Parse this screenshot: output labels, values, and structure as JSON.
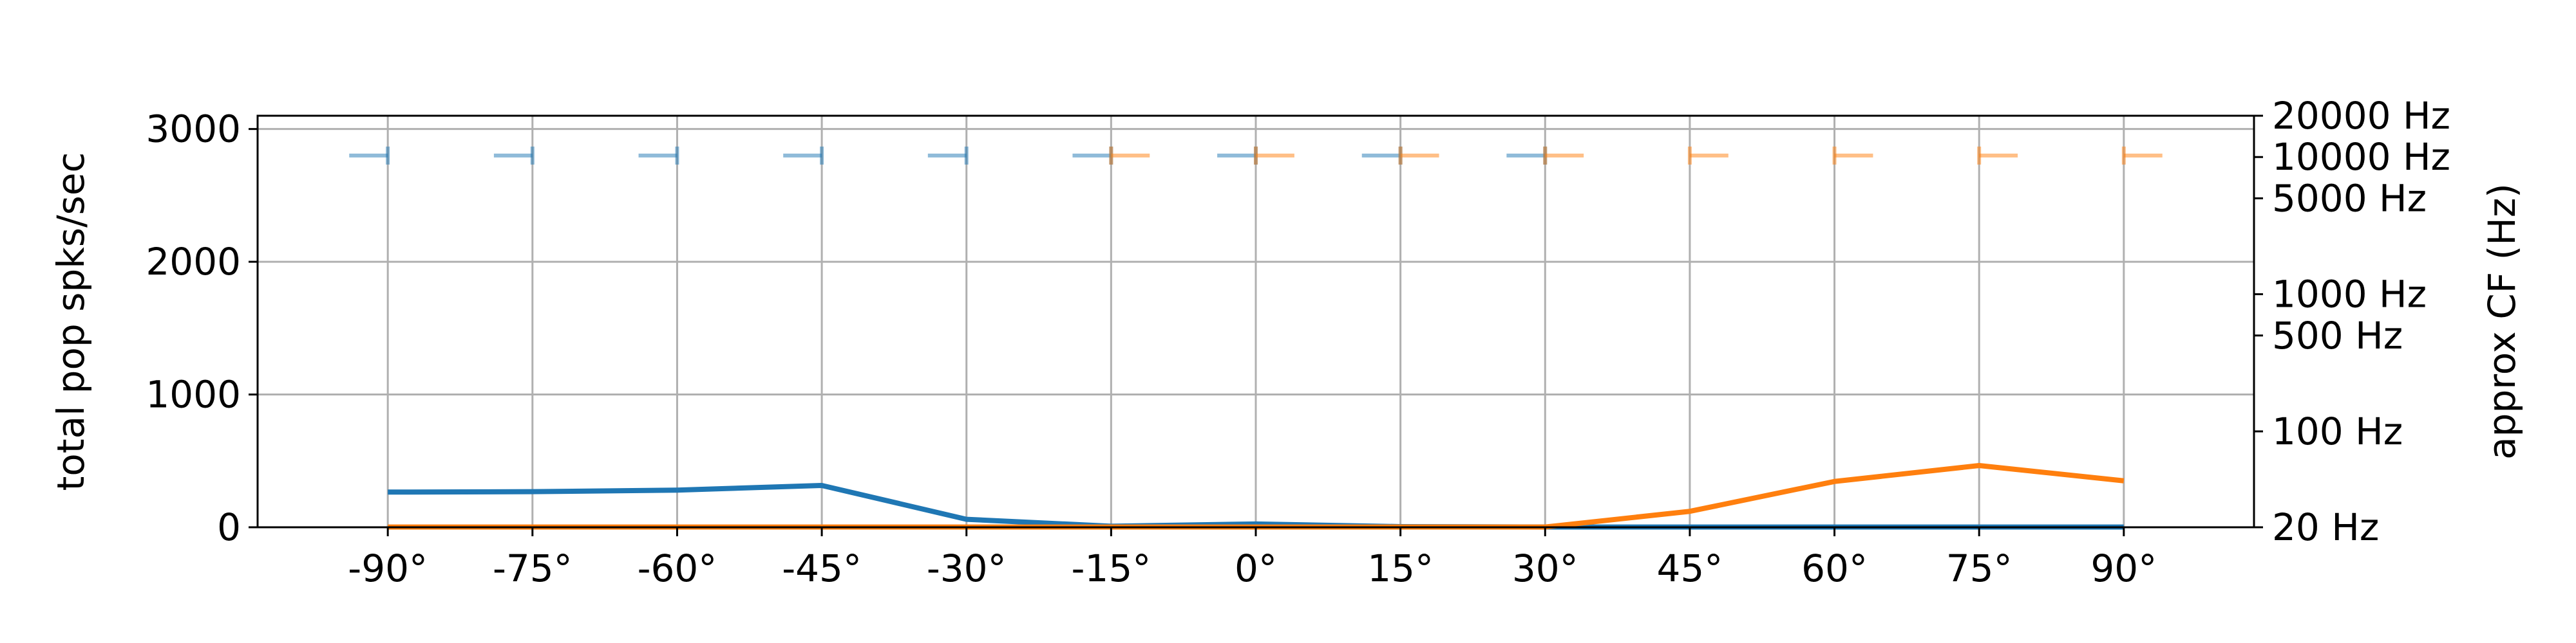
{
  "chart_data": {
    "type": "line",
    "xlabel": "",
    "ylabel": "total pop spks/sec",
    "y2label": "approx CF (Hz)",
    "grid": true,
    "x_categories": [
      "-90°",
      "-75°",
      "-60°",
      "-45°",
      "-30°",
      "-15°",
      "0°",
      "15°",
      "30°",
      "45°",
      "60°",
      "75°",
      "90°"
    ],
    "x_values": [
      -90,
      -75,
      -60,
      -45,
      -30,
      -15,
      0,
      15,
      30,
      45,
      60,
      75,
      90
    ],
    "xlim": [
      -103.5,
      103.5
    ],
    "ylim": [
      0,
      3100
    ],
    "y_ticks": [
      0,
      1000,
      2000,
      3000
    ],
    "y_tick_labels": [
      "0",
      "1000",
      "2000",
      "3000"
    ],
    "y2_scale": "log",
    "y2lim": [
      20,
      20000
    ],
    "y2_ticks": [
      20,
      100,
      500,
      1000,
      5000,
      10000,
      20000
    ],
    "y2_tick_labels": [
      "20 Hz",
      "100 Hz",
      "500 Hz",
      "1000 Hz",
      "5000 Hz",
      "10000 Hz",
      "20000 Hz"
    ],
    "series": [
      {
        "color": "#1f77b4",
        "values": [
          265,
          268,
          280,
          315,
          60,
          8,
          25,
          5,
          2,
          2,
          2,
          2,
          2
        ]
      },
      {
        "color": "#ff7f0e",
        "values": [
          2,
          2,
          2,
          2,
          2,
          2,
          2,
          2,
          2,
          120,
          345,
          465,
          350
        ]
      }
    ],
    "cf_markers": [
      {
        "color": "#1f77b4",
        "opacity": 0.5,
        "x": [
          -90,
          -75,
          -60,
          -45,
          -30,
          -15,
          0,
          15,
          30
        ],
        "y": [
          2800,
          2800,
          2800,
          2800,
          2800,
          2800,
          2800,
          2800,
          2800
        ],
        "offset_deg": -3
      },
      {
        "color": "#ff7f0e",
        "opacity": 0.5,
        "x": [
          -15,
          0,
          15,
          30,
          45,
          60,
          75,
          90
        ],
        "y": [
          2800,
          2800,
          2800,
          2800,
          2800,
          2800,
          2800,
          2800
        ],
        "offset_deg": 3
      }
    ]
  }
}
